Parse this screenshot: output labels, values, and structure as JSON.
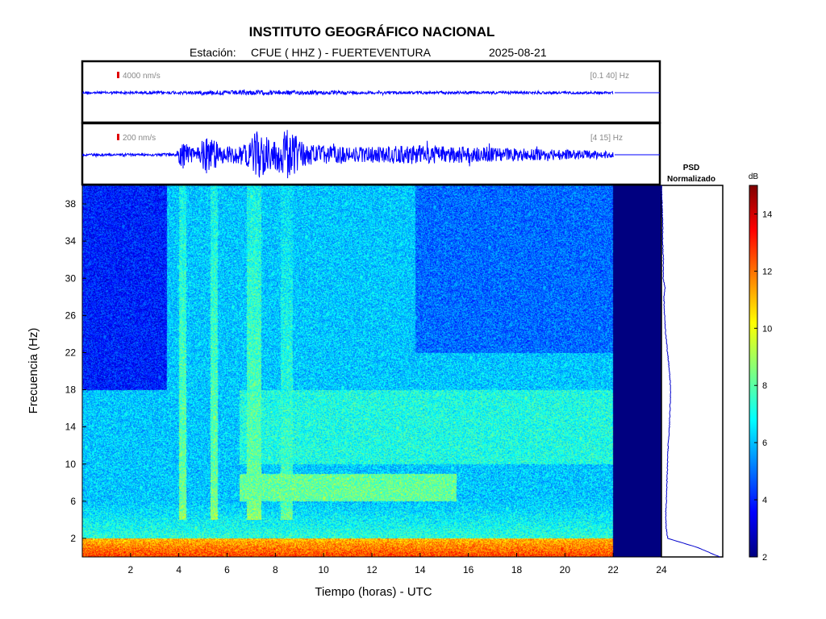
{
  "header": {
    "title": "INSTITUTO GEOGRÁFICO NACIONAL",
    "station_prefix": "Estación:",
    "station": "CFUE ( HHZ ) - FUERTEVENTURA",
    "date": "2025-08-21"
  },
  "colors": {
    "trace": "#0000ff",
    "scale_bar": "#e00000",
    "no_data": "#00007f",
    "frame": "#000000"
  },
  "chart_data": [
    {
      "type": "line",
      "name": "seismogram-broadband",
      "scale_label": "4000 nm/s",
      "filter_label": "[0.1 40] Hz",
      "xlim": [
        0,
        24
      ],
      "data_until_hour": 22.0,
      "amplitude_profile": [
        {
          "h": 0,
          "a": 0.05
        },
        {
          "h": 4,
          "a": 0.06
        },
        {
          "h": 5.5,
          "a": 0.08
        },
        {
          "h": 7,
          "a": 0.1
        },
        {
          "h": 12,
          "a": 0.06
        },
        {
          "h": 22,
          "a": 0.05
        }
      ]
    },
    {
      "type": "line",
      "name": "seismogram-filtered",
      "scale_label": "200 nm/s",
      "filter_label": "[4 15] Hz",
      "xlim": [
        0,
        24
      ],
      "data_until_hour": 22.0,
      "amplitude_profile": [
        {
          "h": 0,
          "a": 0.04
        },
        {
          "h": 3.9,
          "a": 0.05
        },
        {
          "h": 4.1,
          "a": 0.55
        },
        {
          "h": 4.6,
          "a": 0.25
        },
        {
          "h": 5.3,
          "a": 0.75
        },
        {
          "h": 5.7,
          "a": 0.3
        },
        {
          "h": 6.8,
          "a": 0.35
        },
        {
          "h": 7.2,
          "a": 0.9
        },
        {
          "h": 8.0,
          "a": 0.5
        },
        {
          "h": 8.5,
          "a": 0.95
        },
        {
          "h": 9.2,
          "a": 0.4
        },
        {
          "h": 11,
          "a": 0.25
        },
        {
          "h": 14,
          "a": 0.33
        },
        {
          "h": 16,
          "a": 0.28
        },
        {
          "h": 19,
          "a": 0.2
        },
        {
          "h": 22,
          "a": 0.12
        }
      ]
    },
    {
      "type": "heatmap",
      "name": "spectrogram",
      "xlabel": "Tiempo (horas) - UTC",
      "ylabel": "Frecuencia  (Hz)",
      "xlim": [
        0,
        24
      ],
      "ylim": [
        0,
        40
      ],
      "x_ticks": [
        2,
        4,
        6,
        8,
        10,
        12,
        14,
        16,
        18,
        20,
        22,
        24
      ],
      "y_ticks": [
        2,
        6,
        10,
        14,
        18,
        22,
        26,
        30,
        34,
        38
      ],
      "data_until_hour": 22.0,
      "color_scale": {
        "label": "dB",
        "range": [
          2,
          15
        ],
        "ticks": [
          2,
          4,
          6,
          8,
          10,
          12,
          14
        ]
      },
      "features": [
        {
          "kind": "low-frequency band",
          "freq": [
            0,
            2
          ],
          "db": 11
        },
        {
          "kind": "quiet high-frequency zone",
          "hours": [
            0,
            3.5
          ],
          "freq": [
            18,
            40
          ],
          "db": 4
        },
        {
          "kind": "quiet high-frequency zone",
          "hours": [
            13.8,
            22
          ],
          "freq": [
            22,
            40
          ],
          "db": 5
        },
        {
          "kind": "vertical burst",
          "hours": [
            4.0,
            4.3
          ],
          "db": 8.5
        },
        {
          "kind": "vertical burst",
          "hours": [
            5.3,
            5.6
          ],
          "db": 8.5
        },
        {
          "kind": "vertical burst",
          "hours": [
            6.8,
            7.4
          ],
          "db": 8.5
        },
        {
          "kind": "vertical burst",
          "hours": [
            8.2,
            8.7
          ],
          "db": 8.0
        },
        {
          "kind": "elevated band",
          "hours": [
            6.5,
            15.5
          ],
          "freq": [
            6,
            9
          ],
          "db": 8.2
        },
        {
          "kind": "elevated band",
          "hours": [
            6.5,
            22
          ],
          "freq": [
            10,
            18
          ],
          "db": 7.2
        }
      ]
    },
    {
      "type": "line",
      "name": "psd-normalized",
      "title_line1": "PSD",
      "title_line2": "Normalizado",
      "freq": [
        0,
        1,
        2,
        3,
        4,
        5,
        6,
        8,
        10,
        12,
        14,
        16,
        18,
        20,
        22,
        24,
        26,
        28,
        29,
        30,
        32,
        34,
        36,
        38,
        40
      ],
      "value": [
        0.95,
        0.6,
        0.1,
        0.08,
        0.07,
        0.07,
        0.08,
        0.09,
        0.1,
        0.11,
        0.13,
        0.14,
        0.15,
        0.13,
        0.1,
        0.07,
        0.05,
        0.04,
        0.06,
        0.03,
        0.03,
        0.02,
        0.02,
        0.01,
        0.0
      ]
    }
  ]
}
